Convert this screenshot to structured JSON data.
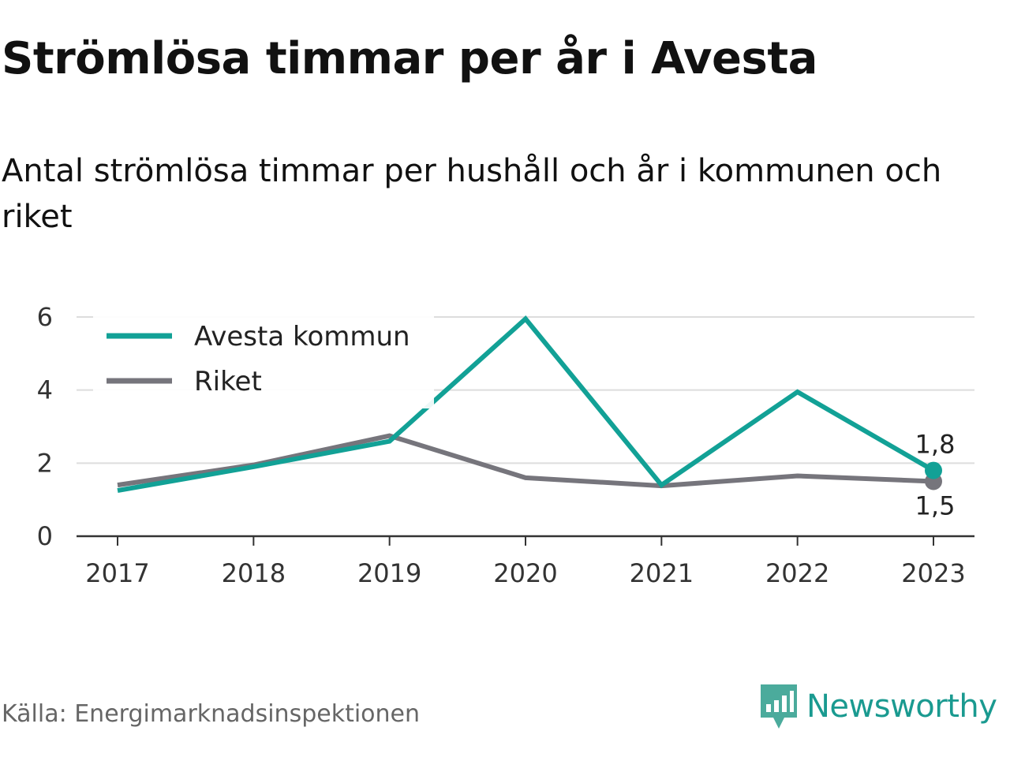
{
  "title": "Strömlösa timmar per år i Avesta",
  "subtitle": "Antal strömlösa timmar per hushåll och år i kommunen och riket",
  "source": "Källa: Energimarknadsinspektionen",
  "logo": {
    "text": "Newsworthy",
    "icon": "newsworthy-logo-icon",
    "color": "#1a9a90"
  },
  "chart_data": {
    "type": "line",
    "x": [
      "2017",
      "2018",
      "2019",
      "2020",
      "2021",
      "2022",
      "2023"
    ],
    "ylim": [
      0,
      6
    ],
    "yticks": [
      0,
      2,
      4,
      6
    ],
    "grid": true,
    "legend_position": "top-left",
    "series": [
      {
        "name": "Avesta kommun",
        "color": "#12a196",
        "values": [
          1.25,
          1.9,
          2.6,
          5.95,
          1.4,
          3.95,
          1.8
        ],
        "end_label": "1,8"
      },
      {
        "name": "Riket",
        "color": "#76757c",
        "values": [
          1.4,
          1.95,
          2.75,
          1.6,
          1.38,
          1.65,
          1.5
        ],
        "end_label": "1,5"
      }
    ]
  }
}
